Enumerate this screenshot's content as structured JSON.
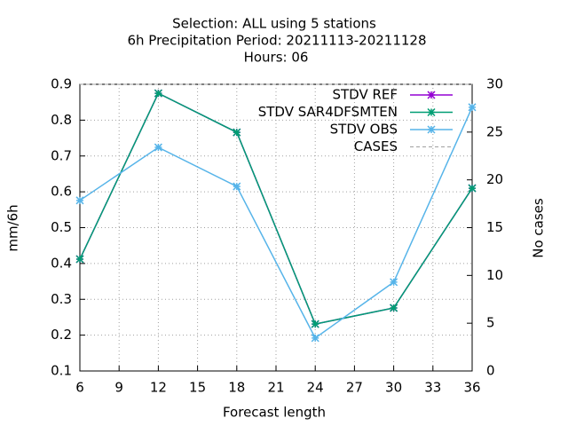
{
  "chart_data": {
    "type": "line",
    "title": [
      "Selection: ALL using     5 stations",
      "6h Precipitation   Period: 20211113-20211128",
      "Hours:  06"
    ],
    "xlabel": "Forecast length",
    "ylabel": "mm/6h",
    "y2label": "No cases",
    "x": [
      6,
      12,
      18,
      24,
      30,
      36
    ],
    "series": [
      {
        "name": "STDV REF",
        "color": "#9400d3",
        "values": [
          0.412,
          0.875,
          0.766,
          0.231,
          0.276,
          0.61
        ]
      },
      {
        "name": "STDV SAR4DFSMTEN",
        "color": "#009e73",
        "values": [
          0.412,
          0.875,
          0.766,
          0.231,
          0.276,
          0.61
        ]
      },
      {
        "name": "STDV OBS",
        "color": "#56b4e9",
        "values": [
          0.576,
          0.724,
          0.615,
          0.192,
          0.348,
          0.836
        ]
      },
      {
        "name": "CASES",
        "color": "#a0a0a0",
        "axis": "y2",
        "dashed": true,
        "values": [
          30,
          30,
          30,
          30,
          30,
          30
        ]
      }
    ],
    "xlim": [
      6,
      36
    ],
    "xticks": [
      6,
      9,
      12,
      15,
      18,
      21,
      24,
      27,
      30,
      33,
      36
    ],
    "ylim": [
      0.1,
      0.9
    ],
    "yticks": [
      0.1,
      0.2,
      0.3,
      0.4,
      0.5,
      0.6,
      0.7,
      0.8,
      0.9
    ],
    "y2lim": [
      0,
      30
    ],
    "y2ticks": [
      0,
      5,
      10,
      15,
      20,
      25,
      30
    ],
    "grid": true,
    "legend": "top-right"
  }
}
